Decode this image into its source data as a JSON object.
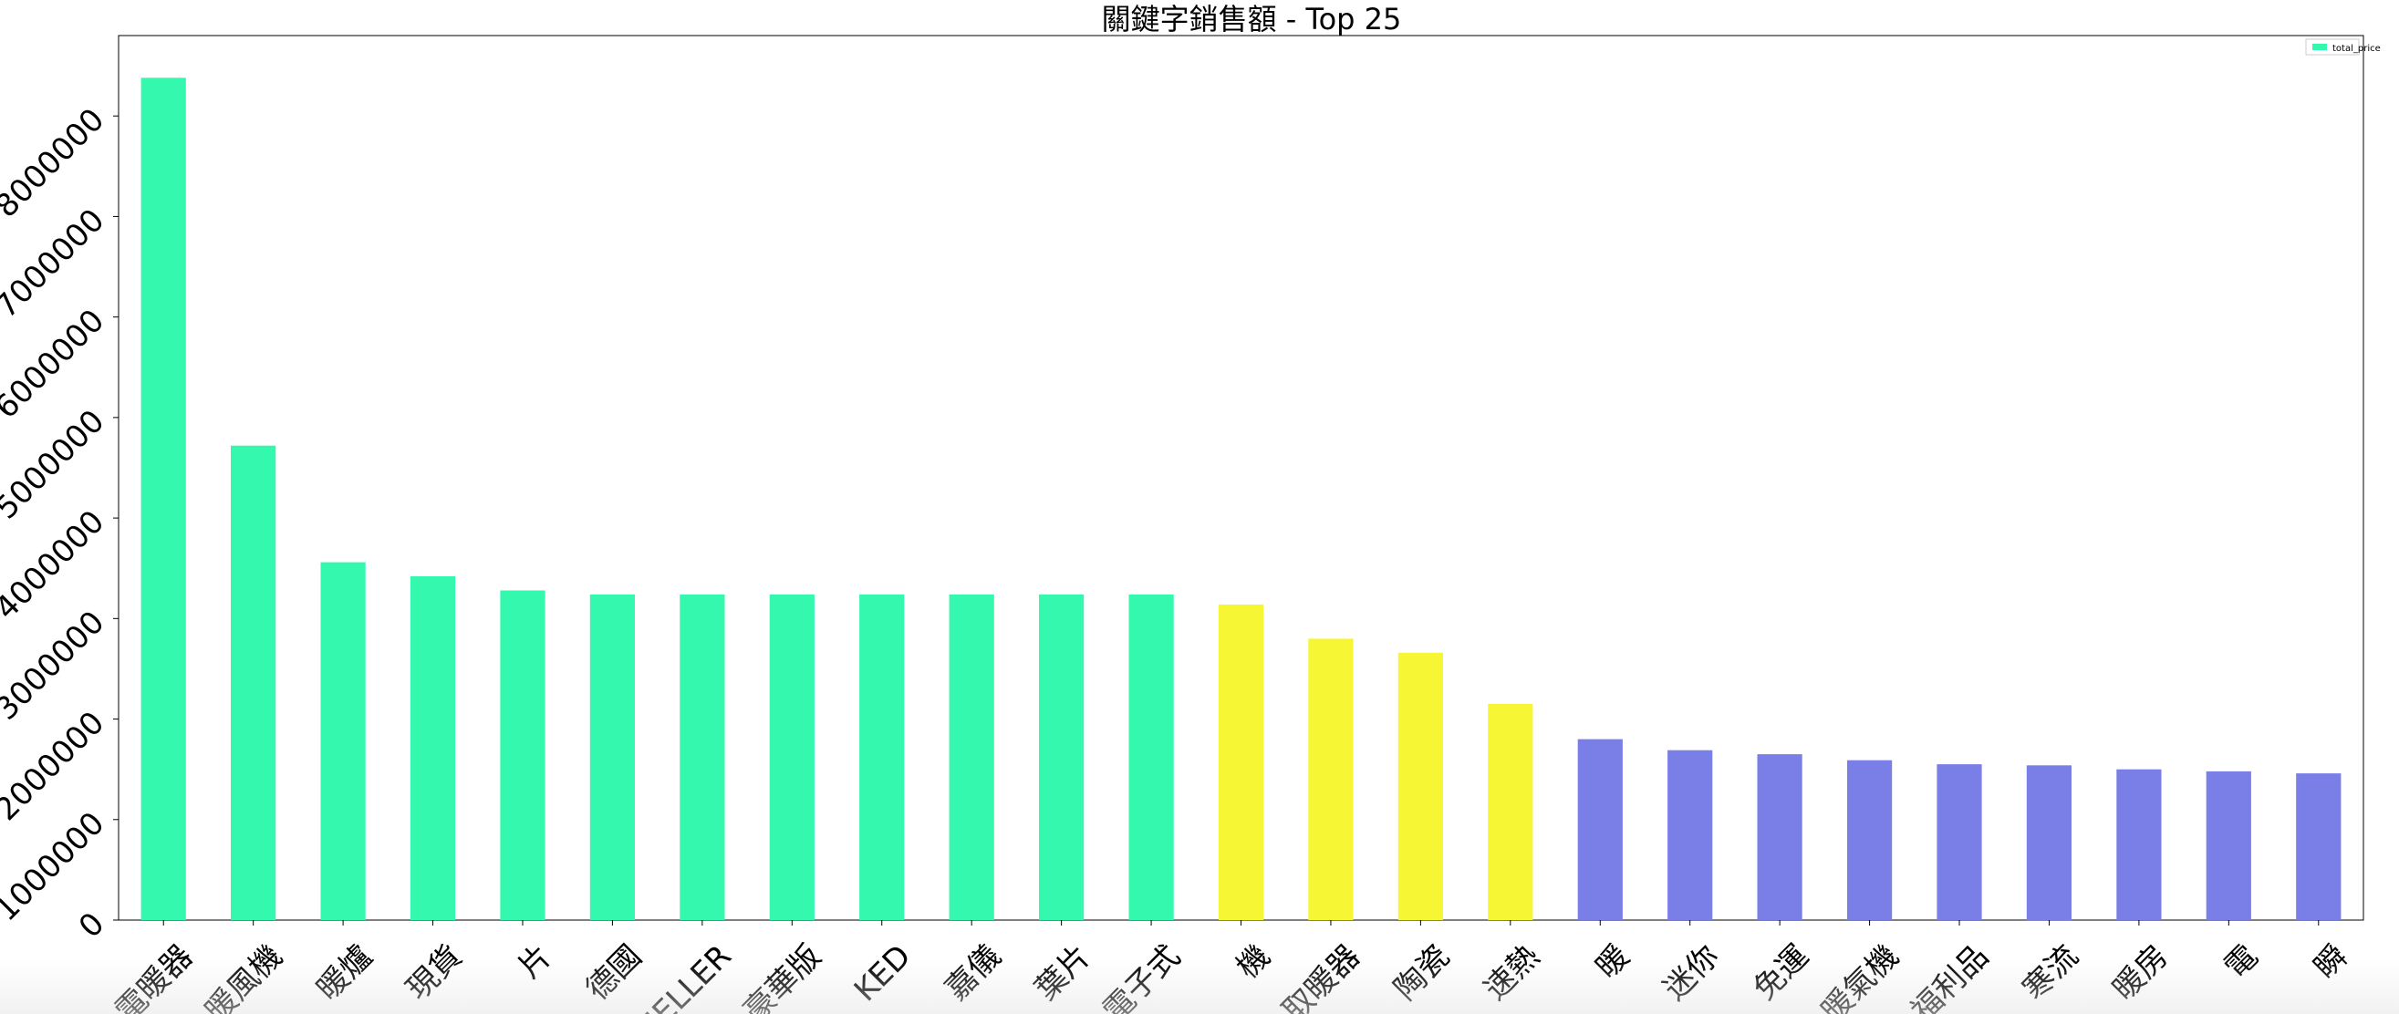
{
  "chart_data": {
    "type": "bar",
    "title": "關鍵字銷售額 - Top 25",
    "xlabel": "",
    "ylabel": "",
    "ylim": [
      0,
      8800000
    ],
    "yticks": [
      0,
      1000000,
      2000000,
      3000000,
      4000000,
      5000000,
      6000000,
      7000000,
      8000000
    ],
    "ytick_labels": [
      "0",
      "1000000",
      "2000000",
      "3000000",
      "4000000",
      "5000000",
      "6000000",
      "7000000",
      "8000000"
    ],
    "categories": [
      "電暖器",
      "暖風機",
      "暖爐",
      "現貨",
      "片",
      "德國",
      "HELLER",
      "豪華版",
      "KED",
      "嘉儀",
      "葉片",
      "電子式",
      "機",
      "取暖器",
      "陶瓷",
      "速熱",
      "暖",
      "迷你",
      "免運",
      "暖氣機",
      "福利品",
      "寒流",
      "暖房",
      "電",
      "瞬"
    ],
    "values": [
      8380000,
      4720000,
      3560000,
      3420000,
      3280000,
      3240000,
      3240000,
      3240000,
      3240000,
      3240000,
      3240000,
      3240000,
      3140000,
      2800000,
      2660000,
      2150000,
      1800000,
      1690000,
      1650000,
      1590000,
      1550000,
      1540000,
      1500000,
      1480000,
      1460000
    ],
    "bar_colors": [
      "#34f8ae",
      "#34f8ae",
      "#34f8ae",
      "#34f8ae",
      "#34f8ae",
      "#34f8ae",
      "#34f8ae",
      "#34f8ae",
      "#34f8ae",
      "#34f8ae",
      "#34f8ae",
      "#34f8ae",
      "#f6f634",
      "#f6f634",
      "#f6f634",
      "#f6f634",
      "#7a7fe8",
      "#7a7fe8",
      "#7a7fe8",
      "#7a7fe8",
      "#7a7fe8",
      "#7a7fe8",
      "#7a7fe8",
      "#7a7fe8",
      "#7a7fe8"
    ],
    "legend": {
      "placement": "top-right",
      "entries": [
        {
          "name": "total_price",
          "color": "#34f8ae"
        }
      ]
    },
    "grid": false
  }
}
